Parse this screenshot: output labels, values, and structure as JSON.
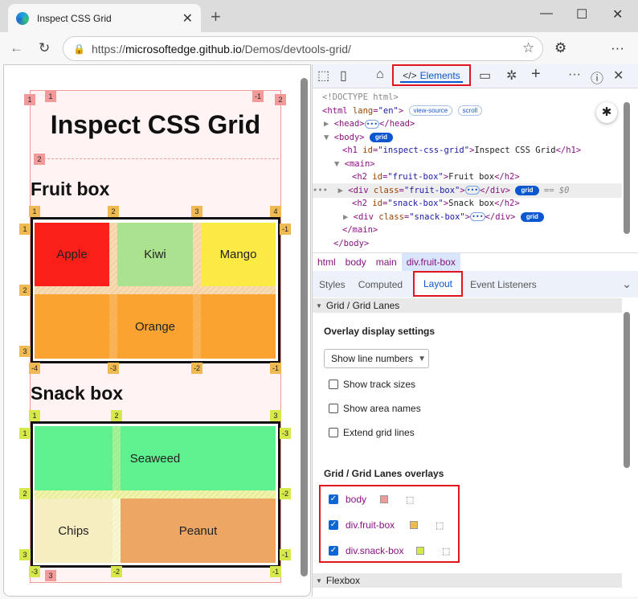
{
  "browser": {
    "tab_title": "Inspect CSS Grid",
    "url_prefix": "https://",
    "url_host": "microsoftedge.github.io",
    "url_path": "/Demos/devtools-grid/"
  },
  "page": {
    "title": "Inspect CSS Grid",
    "fruit_heading": "Fruit box",
    "snack_heading": "Snack box",
    "fruit_cells": [
      "Apple",
      "Kiwi",
      "Mango",
      "Orange"
    ],
    "snack_cells": [
      "Seaweed",
      "Chips",
      "Peanut"
    ],
    "fruit_colors": {
      "apple": "#fb1f1a",
      "kiwi": "#abe28f",
      "mango": "#fcea44",
      "orange": "#fba331"
    },
    "snack_colors": {
      "seaweed": "#5ff08f",
      "chips": "#f6eec1",
      "peanut": "#eea665"
    },
    "body_badges": [
      "1",
      "1",
      "-1",
      "2",
      "2",
      "3"
    ],
    "fruit_badges": [
      "1",
      "2",
      "3",
      "4",
      "1",
      "2",
      "3",
      "-1",
      "-4",
      "-3",
      "-2",
      "-1"
    ],
    "snack_badges": [
      "1",
      "2",
      "3",
      "1",
      "2",
      "3",
      "-3",
      "-2",
      "-1",
      "-3",
      "-2",
      "-1"
    ]
  },
  "devtools": {
    "tabs": {
      "elements": "Elements"
    },
    "dom": {
      "doctype": "<!DOCTYPE html>",
      "html_open": "<html",
      "lang_attr": "lang",
      "lang_val": "\"en\"",
      "view_source": "view-source",
      "scroll": "scroll",
      "head": "<head>",
      "head_close": "</head>",
      "body": "<body>",
      "grid": "grid",
      "h1_open": "<h1",
      "id": "id",
      "h1_id": "\"inspect-css-grid\"",
      "h1_text": "Inspect CSS Grid",
      "h1_close": "</h1>",
      "main": "<main>",
      "h2_open": "<h2",
      "h2a_id": "\"fruit-box\"",
      "h2a_text": "Fruit box",
      "h2_close": "</h2>",
      "div_open": "<div",
      "class": "class",
      "div1_class": "\"fruit-box\"",
      "div_close": "</div>",
      "selected_suffix": "== $0",
      "h2b_id": "\"snack-box\"",
      "h2b_text": "Snack box",
      "div2_class": "\"snack-box\"",
      "main_close": "</main>",
      "body_close": "</body>"
    },
    "breadcrumbs": [
      "html",
      "body",
      "main",
      "div.fruit-box"
    ],
    "subtabs": [
      "Styles",
      "Computed",
      "Layout",
      "Event Listeners"
    ],
    "layout": {
      "grid_section": "Grid / Grid Lanes",
      "overlay_settings": "Overlay display settings",
      "select_value": "Show line numbers",
      "checkboxes": [
        {
          "label": "Show track sizes",
          "checked": false
        },
        {
          "label": "Show area names",
          "checked": false
        },
        {
          "label": "Extend grid lines",
          "checked": false
        }
      ],
      "overlays_heading": "Grid / Grid Lanes overlays",
      "overlays": [
        {
          "label": "body",
          "color": "#f29a9a",
          "checked": true
        },
        {
          "label": "div.fruit-box",
          "color": "#efba52",
          "checked": true
        },
        {
          "label": "div.snack-box",
          "color": "#d6e84a",
          "checked": true
        }
      ],
      "flexbox_section": "Flexbox"
    }
  }
}
